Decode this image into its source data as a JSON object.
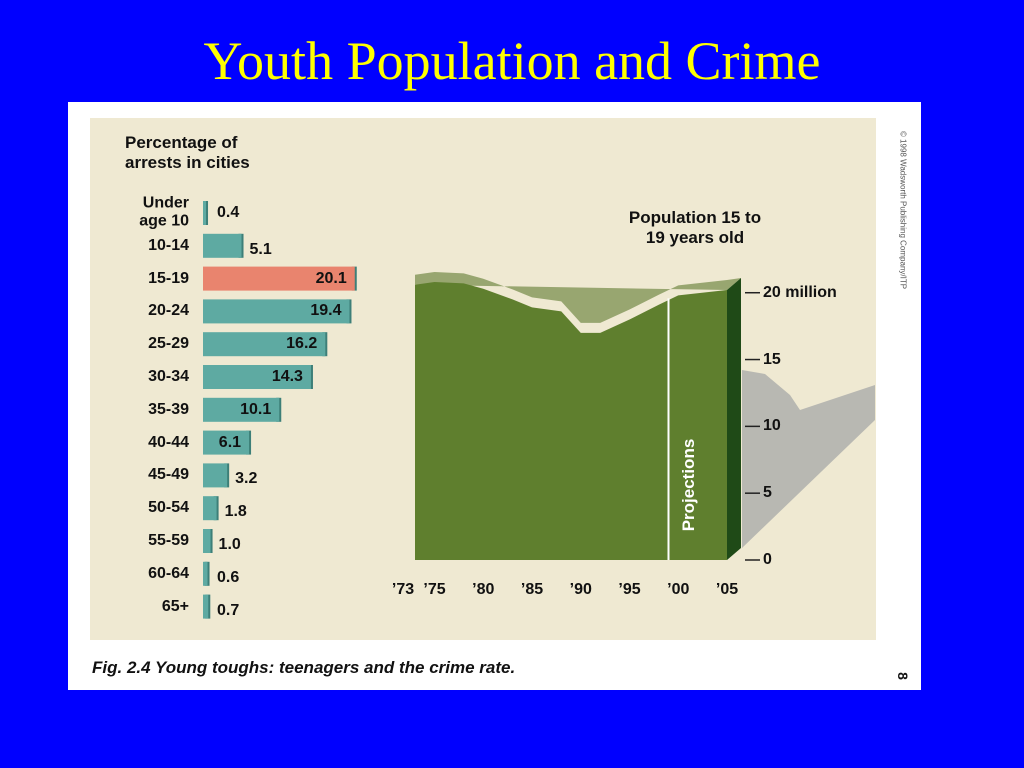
{
  "title": "Youth Population and Crime",
  "chart_data": [
    {
      "type": "hbar",
      "title": "Percentage of\narrests in cities",
      "categories": [
        "Under\nage 10",
        "10-14",
        "15-19",
        "20-24",
        "25-29",
        "30-34",
        "35-39",
        "40-44",
        "45-49",
        "50-54",
        "55-59",
        "60-64",
        "65+"
      ],
      "values": [
        0.4,
        5.1,
        20.1,
        19.4,
        16.2,
        14.3,
        10.1,
        6.1,
        3.2,
        1.8,
        1.0,
        0.6,
        0.7
      ],
      "value_labels": [
        "0.4",
        "5.1",
        "20.1",
        "19.4",
        "16.2",
        "14.3",
        "10.1",
        "6.1",
        "3.2",
        "1.8",
        "1.0",
        "0.6",
        "0.7"
      ],
      "colors": [
        "#5eaaa2",
        "#5eaaa2",
        "#e9846e",
        "#5eaaa2",
        "#5eaaa2",
        "#5eaaa2",
        "#5eaaa2",
        "#5eaaa2",
        "#5eaaa2",
        "#5eaaa2",
        "#5eaaa2",
        "#5eaaa2",
        "#5eaaa2"
      ]
    },
    {
      "type": "area",
      "title": "Population 15 to\n19 years old",
      "x": [
        1973,
        1975,
        1978,
        1980,
        1983,
        1985,
        1988,
        1990,
        1992,
        1995,
        1998,
        2000,
        2005
      ],
      "values": [
        20.6,
        20.8,
        20.7,
        20.3,
        19.5,
        18.9,
        18.6,
        17.0,
        17.0,
        18.0,
        19.1,
        19.8,
        20.2
      ],
      "color": "#5f7f2e",
      "xlim": [
        1973,
        2005
      ],
      "xticks": [
        {
          "value": 1973,
          "label": "’73"
        },
        {
          "value": 1975,
          "label": "’75"
        },
        {
          "value": 1980,
          "label": "’80"
        },
        {
          "value": 1985,
          "label": "’85"
        },
        {
          "value": 1990,
          "label": "’90"
        },
        {
          "value": 1995,
          "label": "’95"
        },
        {
          "value": 2000,
          "label": "’00"
        },
        {
          "value": 2005,
          "label": "’05"
        }
      ],
      "ylim": [
        0,
        22
      ],
      "yticks": [
        0,
        5,
        10,
        15,
        {
          "value": 20,
          "label": "20 million"
        }
      ],
      "projection_start": 1999,
      "projection_label": "Projections"
    }
  ],
  "caption": "Fig. 2.4  Young toughs: teenagers and the crime rate.",
  "copyright": "© 1998 Wadsworth Publishing Company/ITP",
  "page_number": "8"
}
